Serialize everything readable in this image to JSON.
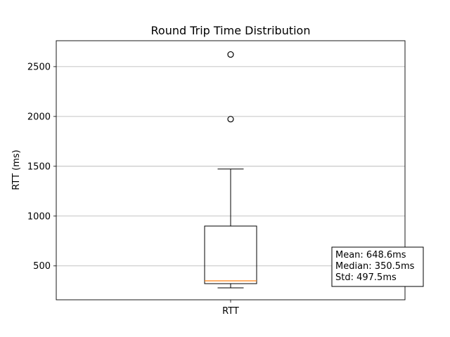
{
  "chart_data": {
    "type": "box",
    "title": "Round Trip Time Distribution",
    "xlabel": "",
    "ylabel": "RTT (ms)",
    "categories": [
      "RTT"
    ],
    "ylim": [
      160,
      2760
    ],
    "yticks": [
      500,
      1000,
      1500,
      2000,
      2500
    ],
    "grid": {
      "y": true,
      "x": false
    },
    "series": [
      {
        "name": "RTT",
        "whisker_low": 280,
        "q1": 322,
        "median": 350.5,
        "q3": 900,
        "whisker_high": 1472,
        "outliers": [
          1973,
          2622
        ]
      }
    ],
    "stats_box": {
      "placement": "lower-right",
      "lines": [
        "Mean: 648.6ms",
        "Median: 350.5ms",
        "Std: 497.5ms"
      ]
    },
    "colors": {
      "box": "#000000",
      "median": "#ff7f0e",
      "grid": "#b0b0b0"
    }
  }
}
